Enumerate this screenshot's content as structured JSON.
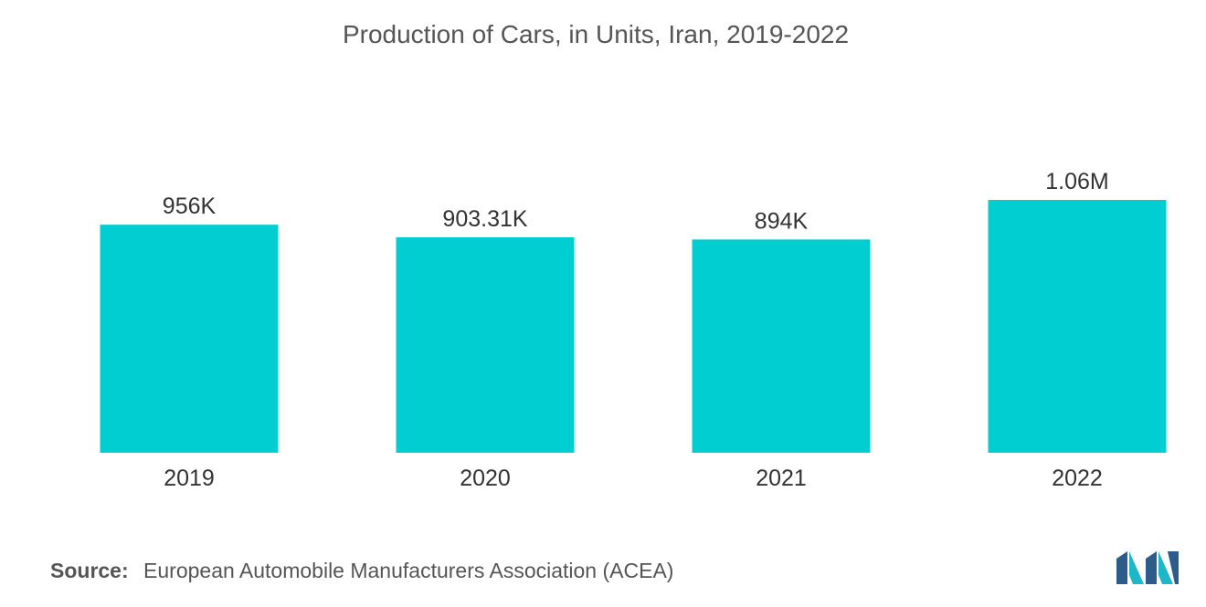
{
  "chart_data": {
    "type": "bar",
    "title": "Production of Cars, in Units, Iran, 2019-2022",
    "categories": [
      "2019",
      "2020",
      "2021",
      "2022"
    ],
    "values": [
      956000,
      903310,
      894000,
      1060000
    ],
    "data_labels": [
      "956K",
      "903.31K",
      "894K",
      "1.06M"
    ],
    "xlabel": "",
    "ylabel": "",
    "ylim": [
      0,
      1060000
    ],
    "grid": false,
    "legend": "none",
    "bar_color": "#00CED1"
  },
  "source": {
    "label": "Source:",
    "text": "European Automobile Manufacturers Association (ACEA)"
  },
  "colors": {
    "bar": "#00CED1",
    "text": "#555555",
    "logo_dark": "#2E5C8A",
    "logo_light": "#1FB6C9"
  },
  "logo": {
    "icon": "mordor-intelligence-logo-icon"
  }
}
